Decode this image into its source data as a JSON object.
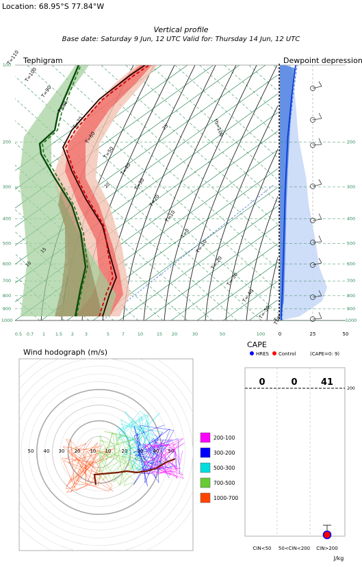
{
  "header": {
    "location": "Location: 68.95°S 77.84°W",
    "title": "Vertical profile",
    "subtitle": "Base date: Saturday 9 Jun, 12 UTC Valid for: Thursday 14 Jun, 12 UTC"
  },
  "chart_data": [
    {
      "type": "line",
      "title": "Tephigram",
      "pressure_levels_hpa": [
        100,
        200,
        300,
        400,
        500,
        600,
        700,
        800,
        900,
        1000
      ],
      "mixing_ratio_ticks": [
        "0.5",
        "0.7",
        "1",
        "1.5",
        "2",
        "3",
        "5",
        "7",
        "10",
        "15",
        "20",
        "30",
        "50",
        "100"
      ],
      "isotherm_labels": [
        "T=110",
        "T=100",
        "T=90",
        "T=80",
        "T=70",
        "T=60",
        "T=50",
        "T=40",
        "T=30",
        "T=20",
        "T=10",
        "T=0",
        "T=-10",
        "T=-20",
        "T=-30",
        "T=-40",
        "T=-50",
        "T=-60",
        "T=-70"
      ],
      "theta_labels": [
        "10",
        "15",
        "20",
        "25"
      ],
      "theta_e_label": "th=100",
      "series": [
        {
          "name": "HRES",
          "color": "#2a0000",
          "kind": "temperature"
        },
        {
          "name": "Control",
          "color": "#cc0000",
          "kind": "temperature"
        },
        {
          "name": "HRES",
          "color": "#0b4a0b",
          "kind": "dewpoint"
        },
        {
          "name": "Control",
          "color": "#1e7a1e",
          "kind": "dewpoint"
        }
      ],
      "shading": [
        "#e08a70",
        "#a0cf98"
      ]
    },
    {
      "type": "area",
      "title": "Dewpoint depression",
      "pressure_levels_hpa": [
        200,
        300,
        400,
        500,
        600,
        700,
        800,
        900,
        1000
      ],
      "x_ticks": [
        "0",
        "25",
        "50"
      ],
      "xlim": [
        0,
        50
      ]
    },
    {
      "type": "line",
      "title": "Wind hodograph (m/s)",
      "ring_labels": [
        "50",
        "40",
        "30",
        "20",
        "10",
        "10",
        "20",
        "30",
        "40",
        "50"
      ],
      "legend": [
        {
          "label": "200-100",
          "color": "#ff00ff"
        },
        {
          "label": "300-200",
          "color": "#0000ff"
        },
        {
          "label": "500-300",
          "color": "#00dddd"
        },
        {
          "label": "700-500",
          "color": "#66cc33"
        },
        {
          "label": "1000-700",
          "color": "#ff4400"
        }
      ]
    },
    {
      "type": "scatter",
      "title": "CAPE",
      "legend": [
        {
          "label": "HRES",
          "color": "#0000ff"
        },
        {
          "label": "Control",
          "color": "#ff0000"
        }
      ],
      "note": "(CAPE=0: 9)",
      "categories": [
        "CIN<50",
        "50<CIN<200",
        "CIN>200"
      ],
      "counts": [
        "0",
        "0",
        "41"
      ],
      "y_tick": "200",
      "unit": "J/kg"
    }
  ]
}
